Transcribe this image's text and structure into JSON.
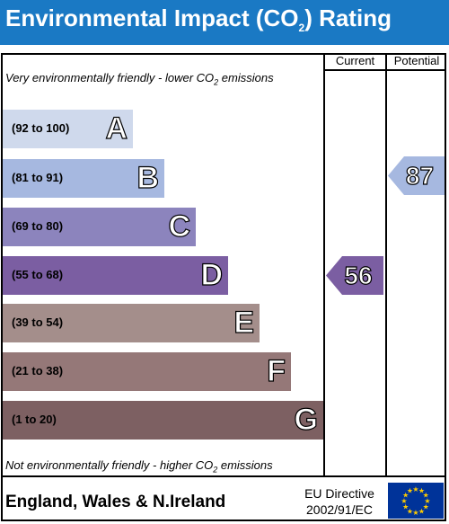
{
  "header": {
    "title_main": "Environmental Impact (CO",
    "title_sub": "2",
    "title_end": ") Rating"
  },
  "columns": {
    "current": "Current",
    "potential": "Potential"
  },
  "notes": {
    "top_main": "Very environmentally friendly - lower CO",
    "top_sub": "2",
    "top_end": " emissions",
    "bottom_main": "Not environmentally friendly - higher CO",
    "bottom_sub": "2",
    "bottom_end": " emissions"
  },
  "footer": {
    "region": "England, Wales & N.Ireland",
    "directive_line1": "EU Directive",
    "directive_line2": "2002/91/EC"
  },
  "chart_data": {
    "type": "bar",
    "title": "Environmental Impact (CO2) Rating",
    "categories": [
      "A",
      "B",
      "C",
      "D",
      "E",
      "F",
      "G"
    ],
    "ranges": [
      "(92 to 100)",
      "(81 to 91)",
      "(69 to 80)",
      "(55 to 68)",
      "(39 to 54)",
      "(21 to 38)",
      "(1 to 20)"
    ],
    "colors": [
      "#cfd9ec",
      "#a6b8e0",
      "#8c84bd",
      "#7b5ea2",
      "#a48e8b",
      "#957878",
      "#7d6062"
    ],
    "current": {
      "value": 56,
      "band": "D",
      "color": "#7b5ea2"
    },
    "potential": {
      "value": 87,
      "band": "B",
      "color": "#a6b8e0"
    }
  }
}
